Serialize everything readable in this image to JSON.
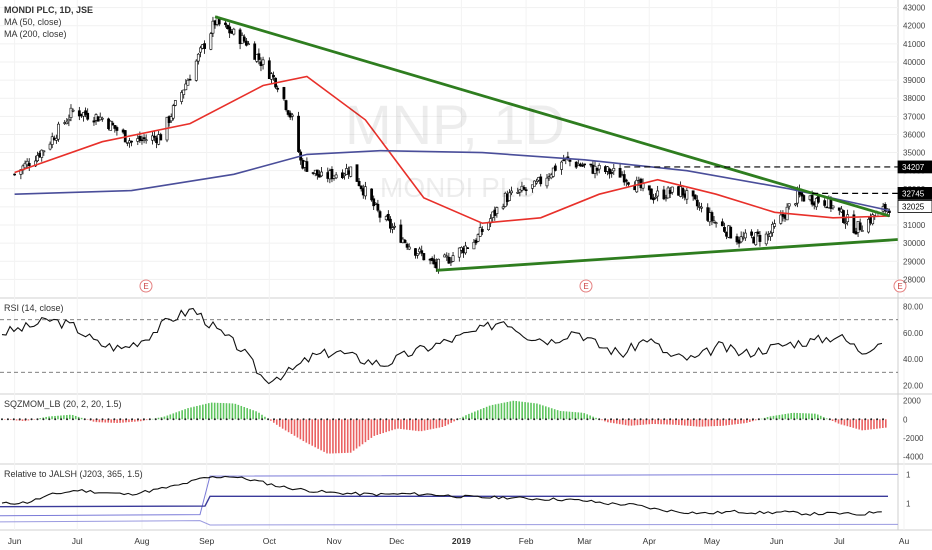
{
  "header": {
    "symbol_line": "MONDI PLC, 1D, JSE",
    "ma1": "MA (50, close)",
    "ma2": "MA (200, close)"
  },
  "watermark": {
    "ticker": "MNP, 1D",
    "company": "MONDI PLC"
  },
  "panels": {
    "rsi": {
      "title": "RSI (14, close)",
      "ticks": [
        "80.00",
        "60.00",
        "40.00",
        "20.00"
      ],
      "levels": [
        70,
        30
      ]
    },
    "sqz": {
      "title": "SQZMOM_LB (20, 2, 20, 1.5)",
      "ticks": [
        "2000",
        "0",
        "-2000",
        "-4000"
      ]
    },
    "rel": {
      "title": "Relative to JALSH (J203, 365, 1.5)",
      "ticks": [
        "1",
        "1"
      ]
    }
  },
  "time_axis": [
    "Jun",
    "Jul",
    "Aug",
    "Sep",
    "Oct",
    "Nov",
    "Dec",
    "2019",
    "Feb",
    "Mar",
    "Apr",
    "May",
    "Jun",
    "Jul",
    "Au"
  ],
  "price_ticks": [
    "43000",
    "42000",
    "41000",
    "40000",
    "39000",
    "38000",
    "37000",
    "36000",
    "35000",
    "34000",
    "33000",
    "32000",
    "31000",
    "30000",
    "29000",
    "28000"
  ],
  "price_markers": [
    {
      "label": "34207",
      "value": 34207,
      "style": "dark"
    },
    {
      "label": "32745",
      "value": 32745,
      "style": "dark"
    },
    {
      "label": "32025",
      "value": 32025,
      "style": "light"
    }
  ],
  "earnings_markers": [
    "E",
    "E",
    "E"
  ],
  "colors": {
    "up": "#000000",
    "down": "#000000",
    "ma50": "#e8302a",
    "ma200": "#4a4e9a",
    "trend": "#2e7d1f",
    "sqz_pos": "#4cbf4c",
    "sqz_neg": "#e85050",
    "rsi": "#111111"
  },
  "chart_data": {
    "type": "candlestick",
    "interval": "1D",
    "period": "Jun 2018 – Jul 2019",
    "ylim": [
      27800,
      43200
    ],
    "close_path": [
      {
        "date": "2018-06-01",
        "close": 33800
      },
      {
        "date": "2018-06-15",
        "close": 35200
      },
      {
        "date": "2018-06-29",
        "close": 37300
      },
      {
        "date": "2018-07-13",
        "close": 36900
      },
      {
        "date": "2018-07-27",
        "close": 35600
      },
      {
        "date": "2018-08-10",
        "close": 35900
      },
      {
        "date": "2018-08-24",
        "close": 39300
      },
      {
        "date": "2018-09-05",
        "close": 42200
      },
      {
        "date": "2018-09-20",
        "close": 41100
      },
      {
        "date": "2018-10-05",
        "close": 38800
      },
      {
        "date": "2018-10-12",
        "close": 36800
      },
      {
        "date": "2018-10-16",
        "close": 34500
      },
      {
        "date": "2018-10-26",
        "close": 33600
      },
      {
        "date": "2018-11-09",
        "close": 34100
      },
      {
        "date": "2018-11-23",
        "close": 31500
      },
      {
        "date": "2018-12-07",
        "close": 29900
      },
      {
        "date": "2018-12-20",
        "close": 28700
      },
      {
        "date": "2019-01-08",
        "close": 30200
      },
      {
        "date": "2019-01-22",
        "close": 32500
      },
      {
        "date": "2019-02-05",
        "close": 33100
      },
      {
        "date": "2019-02-19",
        "close": 34600
      },
      {
        "date": "2019-03-05",
        "close": 34100
      },
      {
        "date": "2019-03-19",
        "close": 33800
      },
      {
        "date": "2019-04-02",
        "close": 32600
      },
      {
        "date": "2019-04-16",
        "close": 32900
      },
      {
        "date": "2019-04-30",
        "close": 31400
      },
      {
        "date": "2019-05-14",
        "close": 30200
      },
      {
        "date": "2019-05-28",
        "close": 30400
      },
      {
        "date": "2019-06-11",
        "close": 32600
      },
      {
        "date": "2019-06-25",
        "close": 32300
      },
      {
        "date": "2019-07-09",
        "close": 30800
      },
      {
        "date": "2019-07-25",
        "close": 32025
      }
    ],
    "series": [
      {
        "name": "MA (50, close)",
        "values": [
          {
            "date": "2018-06-01",
            "value": 33900
          },
          {
            "date": "2018-07-13",
            "value": 35600
          },
          {
            "date": "2018-08-24",
            "value": 36600
          },
          {
            "date": "2018-09-28",
            "value": 38700
          },
          {
            "date": "2018-10-19",
            "value": 39200
          },
          {
            "date": "2018-11-16",
            "value": 36800
          },
          {
            "date": "2018-12-14",
            "value": 32500
          },
          {
            "date": "2019-01-11",
            "value": 31100
          },
          {
            "date": "2019-02-08",
            "value": 31400
          },
          {
            "date": "2019-03-08",
            "value": 32700
          },
          {
            "date": "2019-04-05",
            "value": 33500
          },
          {
            "date": "2019-05-03",
            "value": 32700
          },
          {
            "date": "2019-05-31",
            "value": 31700
          },
          {
            "date": "2019-06-28",
            "value": 31400
          },
          {
            "date": "2019-07-25",
            "value": 31500
          }
        ]
      },
      {
        "name": "MA (200, close)",
        "values": [
          {
            "date": "2018-06-01",
            "value": 32700
          },
          {
            "date": "2018-07-27",
            "value": 32900
          },
          {
            "date": "2018-09-14",
            "value": 33800
          },
          {
            "date": "2018-10-19",
            "value": 34900
          },
          {
            "date": "2018-11-23",
            "value": 35100
          },
          {
            "date": "2019-01-11",
            "value": 35000
          },
          {
            "date": "2019-03-01",
            "value": 34600
          },
          {
            "date": "2019-04-19",
            "value": 34000
          },
          {
            "date": "2019-06-07",
            "value": 33000
          },
          {
            "date": "2019-07-25",
            "value": 31800
          }
        ]
      }
    ],
    "trendlines": [
      {
        "from": {
          "date": "2018-09-05",
          "value": 42500
        },
        "to": {
          "date": "2019-07-25",
          "value": 31500
        }
      },
      {
        "from": {
          "date": "2018-12-20",
          "value": 28500
        },
        "to": {
          "date": "2019-07-29",
          "value": 30200
        }
      }
    ],
    "horizontal_lines": [
      34207,
      32745
    ],
    "rsi": {
      "ylim": [
        15,
        85
      ],
      "levels": [
        70,
        30
      ],
      "path": [
        60,
        64,
        70,
        65,
        52,
        48,
        56,
        70,
        78,
        62,
        48,
        24,
        30,
        42,
        46,
        40,
        36,
        44,
        50,
        56,
        62,
        70,
        58,
        54,
        62,
        50,
        44,
        56,
        42,
        40,
        50,
        44,
        48,
        52,
        54,
        58,
        46,
        56
      ]
    },
    "sqzmom": {
      "ylim": [
        -4600,
        2400
      ],
      "path": [
        0,
        -200,
        300,
        500,
        -300,
        -400,
        -200,
        300,
        1200,
        1800,
        1700,
        800,
        -900,
        -2400,
        -3700,
        -3600,
        -1800,
        -1000,
        -1300,
        -800,
        500,
        1500,
        2000,
        1700,
        900,
        700,
        -300,
        -700,
        -500,
        -600,
        -800,
        -700,
        -400,
        300,
        700,
        600,
        -500,
        -1200,
        -900
      ]
    },
    "relative": {
      "path": [
        0.4,
        0.42,
        0.55,
        0.62,
        0.58,
        0.55,
        0.62,
        0.7,
        0.82,
        0.85,
        0.78,
        0.68,
        0.62,
        0.58,
        0.56,
        0.55,
        0.56,
        0.55,
        0.52,
        0.5,
        0.5,
        0.48,
        0.47,
        0.45,
        0.4,
        0.38,
        0.3,
        0.26,
        0.24,
        0.27,
        0.25,
        0.26,
        0.23,
        0.24,
        0.22,
        0.3
      ]
    }
  }
}
